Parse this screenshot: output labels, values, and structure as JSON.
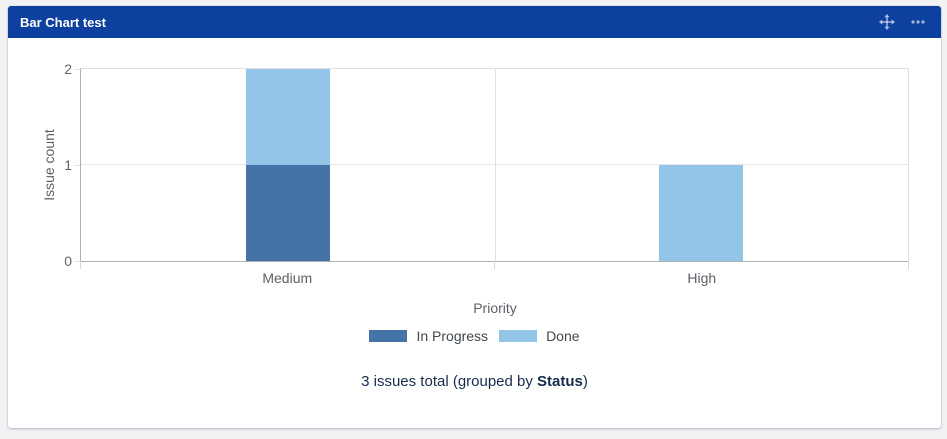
{
  "gadget": {
    "title": "Bar Chart test",
    "header_bg": "#0e409f",
    "header_icon_color": "rgba(255,255,255,0.62)",
    "header_icons": [
      {
        "name": "move-icon"
      },
      {
        "name": "more-options-icon"
      }
    ]
  },
  "chart_data": {
    "type": "bar",
    "stacked": true,
    "categories": [
      "Medium",
      "High"
    ],
    "series": [
      {
        "name": "In Progress",
        "color": "#4572A7",
        "values": [
          1,
          0
        ]
      },
      {
        "name": "Done",
        "color": "#92C5E8",
        "values": [
          1,
          1
        ]
      }
    ],
    "xlabel": "Priority",
    "ylabel": "Issue count",
    "ylim": [
      0,
      2
    ],
    "yticks": [
      0,
      1,
      2
    ],
    "grid": true,
    "legend_position": "bottom"
  },
  "footer": {
    "prefix": "3 issues total (grouped by ",
    "group_by": "Status",
    "suffix": ")"
  }
}
